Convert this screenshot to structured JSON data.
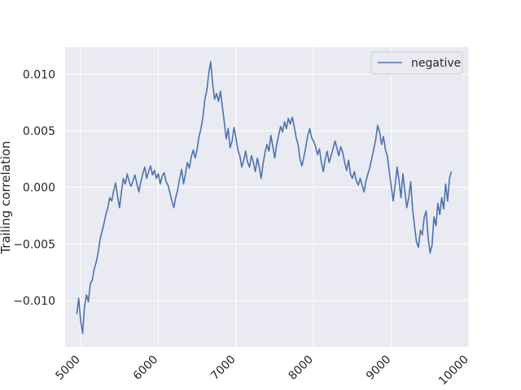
{
  "chart_data": {
    "type": "line",
    "title": "",
    "xlabel": "",
    "ylabel": "Trailing correlation",
    "xlim": [
      4800,
      10000
    ],
    "ylim": [
      -0.0141,
      0.0124
    ],
    "grid": true,
    "legend_position": "top-right",
    "x_ticks": [
      5000,
      6000,
      7000,
      8000,
      9000,
      10000
    ],
    "x_tick_labels": [
      "5000",
      "6000",
      "7000",
      "8000",
      "9000",
      "10000"
    ],
    "y_ticks": [
      -0.01,
      -0.005,
      0.0,
      0.005,
      0.01
    ],
    "y_tick_labels": [
      "−0.010",
      "−0.005",
      "0.000",
      "0.005",
      "0.010"
    ],
    "series": [
      {
        "name": "negative",
        "color": "#4c72b0",
        "x": [
          4950,
          4975,
          5000,
          5025,
          5050,
          5075,
          5100,
          5125,
          5150,
          5175,
          5200,
          5225,
          5250,
          5275,
          5300,
          5325,
          5350,
          5375,
          5400,
          5425,
          5450,
          5475,
          5500,
          5525,
          5550,
          5575,
          5600,
          5625,
          5650,
          5675,
          5700,
          5725,
          5750,
          5775,
          5800,
          5825,
          5850,
          5875,
          5900,
          5925,
          5950,
          5975,
          6000,
          6025,
          6050,
          6075,
          6100,
          6125,
          6150,
          6175,
          6200,
          6225,
          6250,
          6275,
          6300,
          6325,
          6350,
          6375,
          6400,
          6425,
          6450,
          6475,
          6500,
          6525,
          6550,
          6575,
          6600,
          6625,
          6650,
          6675,
          6700,
          6725,
          6750,
          6775,
          6800,
          6825,
          6850,
          6875,
          6900,
          6925,
          6950,
          6975,
          7000,
          7025,
          7050,
          7075,
          7100,
          7125,
          7150,
          7175,
          7200,
          7225,
          7250,
          7275,
          7300,
          7325,
          7350,
          7375,
          7400,
          7425,
          7450,
          7475,
          7500,
          7525,
          7550,
          7575,
          7600,
          7625,
          7650,
          7675,
          7700,
          7725,
          7750,
          7775,
          7800,
          7825,
          7850,
          7875,
          7900,
          7925,
          7950,
          7975,
          8000,
          8025,
          8050,
          8075,
          8100,
          8125,
          8150,
          8175,
          8200,
          8225,
          8250,
          8275,
          8300,
          8325,
          8350,
          8375,
          8400,
          8425,
          8450,
          8475,
          8500,
          8525,
          8550,
          8575,
          8600,
          8625,
          8650,
          8675,
          8700,
          8725,
          8750,
          8775,
          8800,
          8825,
          8850,
          8875,
          8900,
          8925,
          8950,
          8975,
          9000,
          9025,
          9050,
          9075,
          9100,
          9125,
          9150,
          9175,
          9200,
          9225,
          9250,
          9275,
          9300,
          9325,
          9350,
          9375,
          9400,
          9425,
          9450,
          9475,
          9500,
          9525,
          9550,
          9575,
          9600,
          9625,
          9650,
          9675,
          9700,
          9725,
          9750,
          9775
        ],
        "y": [
          -0.0112,
          -0.0098,
          -0.0118,
          -0.0129,
          -0.0106,
          -0.0095,
          -0.0101,
          -0.0085,
          -0.0082,
          -0.0072,
          -0.0066,
          -0.0058,
          -0.0046,
          -0.0039,
          -0.0032,
          -0.0024,
          -0.0018,
          -0.0009,
          -0.0012,
          -0.0003,
          0.0004,
          -0.0008,
          -0.0018,
          -0.0004,
          0.0008,
          0.0003,
          0.0012,
          0.0005,
          0.0001,
          0.0006,
          0.0011,
          0.0003,
          -0.0004,
          0.0005,
          0.0012,
          0.0018,
          0.0008,
          0.0014,
          0.0019,
          0.0011,
          0.0015,
          0.0008,
          0.0012,
          0.0003,
          0.001,
          0.0013,
          0.0005,
          0.0002,
          -0.0005,
          -0.0012,
          -0.0018,
          -0.0009,
          -0.0002,
          0.0008,
          0.0016,
          0.0003,
          0.0012,
          0.0022,
          0.0017,
          0.0027,
          0.0033,
          0.0026,
          0.0034,
          0.0045,
          0.0052,
          0.0062,
          0.0078,
          0.0086,
          0.0101,
          0.0111,
          0.0092,
          0.0078,
          0.0083,
          0.0076,
          0.0085,
          0.0071,
          0.0058,
          0.0043,
          0.0052,
          0.0035,
          0.0041,
          0.0053,
          0.0044,
          0.0033,
          0.0028,
          0.0018,
          0.0024,
          0.0032,
          0.0022,
          0.0018,
          0.0028,
          0.0022,
          0.0014,
          0.0026,
          0.0018,
          0.0008,
          0.0021,
          0.0031,
          0.0038,
          0.0032,
          0.0046,
          0.0036,
          0.0026,
          0.0038,
          0.0046,
          0.0054,
          0.0049,
          0.0058,
          0.0052,
          0.0061,
          0.0056,
          0.0062,
          0.0054,
          0.0044,
          0.0038,
          0.0025,
          0.0019,
          0.0027,
          0.0036,
          0.0046,
          0.0052,
          0.0044,
          0.0041,
          0.0036,
          0.0029,
          0.0034,
          0.0022,
          0.0014,
          0.0025,
          0.0032,
          0.0022,
          0.0028,
          0.0034,
          0.0041,
          0.0035,
          0.0028,
          0.0036,
          0.0031,
          0.0022,
          0.0015,
          0.0024,
          0.0012,
          0.0008,
          0.0014,
          0.0006,
          0.0002,
          0.0008,
          0.0002,
          -0.0004,
          0.0006,
          0.0012,
          0.0018,
          0.0026,
          0.0034,
          0.0042,
          0.0055,
          0.0049,
          0.0038,
          0.0045,
          0.0033,
          0.0028,
          0.0014,
          0.0001,
          -0.0012,
          0.0002,
          0.0018,
          0.0006,
          -0.0009,
          0.0012,
          -0.0003,
          -0.0018,
          -0.0009,
          0.0005,
          -0.0019,
          -0.0034,
          -0.0048,
          -0.0053,
          -0.0038,
          -0.0042,
          -0.0026,
          -0.0021,
          -0.0044,
          -0.0058,
          -0.0051,
          -0.0026,
          -0.0034,
          -0.0014,
          -0.0024,
          -0.0009,
          -0.0019,
          0.0003,
          -0.0012,
          0.0008,
          0.0014
        ]
      }
    ]
  }
}
